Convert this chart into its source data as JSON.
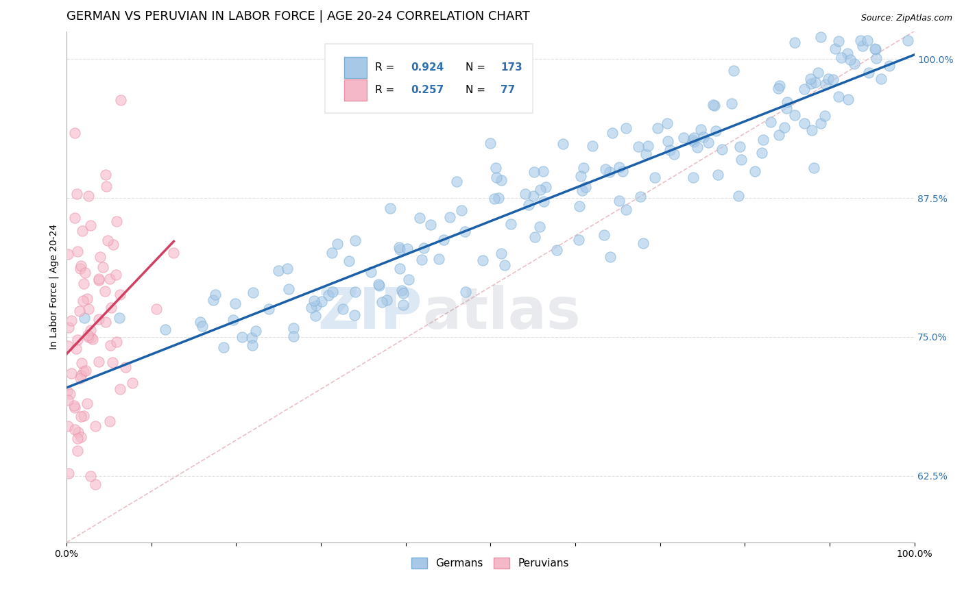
{
  "title": "GERMAN VS PERUVIAN IN LABOR FORCE | AGE 20-24 CORRELATION CHART",
  "source": "Source: ZipAtlas.com",
  "ylabel": "In Labor Force | Age 20-24",
  "watermark_zip": "ZIP",
  "watermark_atlas": "atlas",
  "xlim": [
    0.0,
    1.0
  ],
  "ylim": [
    0.565,
    1.025
  ],
  "ytick_positions": [
    0.625,
    0.75,
    0.875,
    1.0
  ],
  "yticklabels": [
    "62.5%",
    "75.0%",
    "87.5%",
    "100.0%"
  ],
  "blue_scatter_color": "#a8c8e8",
  "blue_edge_color": "#7aafd4",
  "pink_scatter_color": "#f5b8c8",
  "pink_edge_color": "#e890a8",
  "line_blue": "#1a5fa8",
  "line_pink": "#d04060",
  "diagonal_color": "#e8b8c0",
  "grid_color": "#e0e0e0",
  "text_color_blue": "#3070b0",
  "legend_box_color": "#e8e8e8",
  "blue_R": 0.924,
  "blue_N": 173,
  "pink_R": 0.257,
  "pink_N": 77,
  "legend_labels": [
    "Germans",
    "Peruvians"
  ],
  "title_fontsize": 13,
  "source_fontsize": 9,
  "label_fontsize": 10,
  "tick_fontsize": 10,
  "legend_fontsize": 11,
  "watermark_fontsize_zip": 60,
  "watermark_fontsize_atlas": 60,
  "watermark_color": "#c8d8f0",
  "seed_blue": 12,
  "seed_pink": 7
}
